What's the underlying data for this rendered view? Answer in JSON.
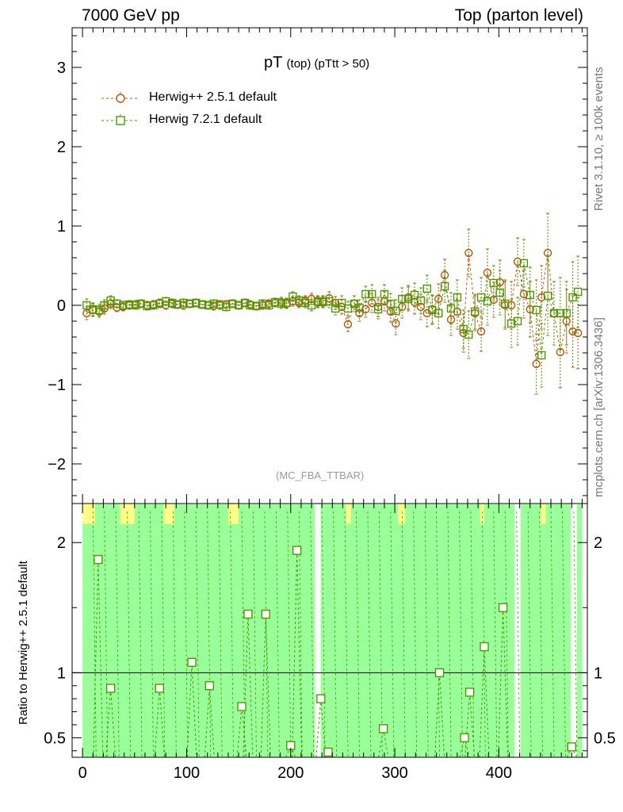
{
  "header": {
    "left": "7000 GeV pp",
    "right": "Top (parton level)"
  },
  "side_labels": {
    "rivet": "Rivet 3.1.10, ≥ 100k events",
    "site": "mcplots.cern.ch [arXiv:1306.3436]"
  },
  "colors": {
    "herwig_old": "#b35806",
    "herwig_new": "#4d9a00",
    "band_green": "#99ff99",
    "band_yellow": "#ffff88"
  },
  "chart_data": [
    {
      "type": "scatter",
      "title_main": "pT",
      "title_sub": "(top) (pTtt > 50)",
      "watermark": "(MC_FBA_TTBAR)",
      "xlim": [
        -10,
        485
      ],
      "ylim": [
        -2.5,
        3.5
      ],
      "yticks": [
        -2,
        -1,
        0,
        1,
        2,
        3
      ],
      "ytick_labels": [
        "−2",
        "−1",
        "0",
        "1",
        "2",
        "3"
      ],
      "xticks": [
        0,
        100,
        200,
        300,
        400
      ],
      "xtick_labels": [
        "0",
        "100",
        "200",
        "300",
        "400"
      ],
      "x": [
        4,
        10,
        16,
        21,
        27,
        33,
        39,
        45,
        51,
        56,
        62,
        68,
        74,
        80,
        86,
        91,
        97,
        103,
        109,
        115,
        121,
        126,
        132,
        138,
        144,
        150,
        156,
        161,
        167,
        173,
        179,
        185,
        191,
        196,
        202,
        208,
        214,
        220,
        226,
        231,
        237,
        243,
        249,
        255,
        261,
        266,
        272,
        278,
        284,
        290,
        296,
        301,
        307,
        313,
        319,
        325,
        331,
        336,
        342,
        348,
        354,
        360,
        366,
        371,
        377,
        383,
        389,
        395,
        401,
        406,
        412,
        418,
        424,
        430,
        436,
        441,
        447,
        453,
        459,
        465,
        471,
        476
      ],
      "series": [
        {
          "name": "Herwig++ 2.5.1 default",
          "marker": "circle",
          "y": [
            -0.1,
            -0.06,
            -0.08,
            -0.04,
            0.02,
            -0.03,
            -0.02,
            0.0,
            0.01,
            0.02,
            0.0,
            0.01,
            0.03,
            0.0,
            0.02,
            0.01,
            0.0,
            0.02,
            0.03,
            0.01,
            0.0,
            -0.01,
            0.0,
            0.01,
            0.02,
            0.0,
            0.03,
            0.01,
            -0.01,
            0.0,
            0.02,
            0.03,
            0.04,
            0.02,
            0.05,
            0.03,
            0.06,
            0.08,
            0.04,
            0.05,
            0.09,
            0.03,
            -0.02,
            -0.24,
            0.02,
            -0.1,
            -0.05,
            0.03,
            -0.02,
            0.05,
            -0.08,
            -0.23,
            -0.02,
            0.1,
            0.04,
            -0.02,
            -0.1,
            -0.05,
            0.08,
            0.38,
            -0.18,
            -0.08,
            -0.35,
            0.66,
            -0.1,
            -0.33,
            0.41,
            0.07,
            0.29,
            0.0,
            0.0,
            0.55,
            0.14,
            -0.05,
            -0.74,
            0.1,
            0.66,
            -0.1,
            -0.59,
            -0.2,
            -0.33,
            -0.35
          ],
          "err": [
            0.08,
            0.08,
            0.07,
            0.07,
            0.06,
            0.05,
            0.05,
            0.05,
            0.05,
            0.05,
            0.05,
            0.05,
            0.05,
            0.05,
            0.05,
            0.05,
            0.05,
            0.05,
            0.05,
            0.05,
            0.05,
            0.05,
            0.05,
            0.05,
            0.05,
            0.05,
            0.05,
            0.05,
            0.05,
            0.05,
            0.05,
            0.05,
            0.06,
            0.06,
            0.06,
            0.06,
            0.06,
            0.07,
            0.07,
            0.07,
            0.08,
            0.08,
            0.09,
            0.09,
            0.1,
            0.1,
            0.1,
            0.12,
            0.12,
            0.12,
            0.13,
            0.14,
            0.14,
            0.15,
            0.15,
            0.16,
            0.17,
            0.18,
            0.19,
            0.2,
            0.2,
            0.22,
            0.24,
            0.3,
            0.22,
            0.25,
            0.3,
            0.22,
            0.28,
            0.3,
            0.3,
            0.3,
            0.3,
            0.35,
            0.38,
            0.4,
            0.5,
            0.4,
            0.45,
            0.4,
            0.45,
            0.45
          ]
        },
        {
          "name": "Herwig 7.2.1 default",
          "marker": "square",
          "y": [
            0.0,
            -0.05,
            -0.06,
            0.0,
            0.06,
            0.02,
            0.0,
            0.01,
            0.0,
            0.02,
            -0.01,
            0.0,
            0.02,
            0.05,
            0.03,
            0.01,
            0.03,
            0.02,
            0.03,
            0.01,
            0.0,
            0.02,
            0.01,
            -0.02,
            0.02,
            0.0,
            0.03,
            0.0,
            -0.01,
            0.02,
            0.0,
            0.04,
            0.02,
            0.03,
            0.11,
            0.06,
            0.03,
            0.0,
            0.05,
            0.04,
            0.05,
            -0.04,
            0.03,
            -0.04,
            0.02,
            -0.03,
            0.14,
            0.14,
            -0.05,
            0.14,
            0.02,
            -0.07,
            0.08,
            0.08,
            0.13,
            0.06,
            0.21,
            -0.06,
            -0.1,
            0.24,
            -0.04,
            0.1,
            -0.3,
            -0.37,
            -0.08,
            0.1,
            0.05,
            0.28,
            0.16,
            0.02,
            -0.23,
            -0.2,
            0.53,
            0.13,
            -0.06,
            -0.63,
            0.12,
            -0.1,
            -0.1,
            -0.1,
            0.1,
            0.17
          ],
          "err": [
            0.08,
            0.08,
            0.07,
            0.07,
            0.06,
            0.05,
            0.05,
            0.05,
            0.05,
            0.05,
            0.05,
            0.05,
            0.05,
            0.05,
            0.05,
            0.05,
            0.05,
            0.05,
            0.05,
            0.05,
            0.05,
            0.05,
            0.05,
            0.05,
            0.05,
            0.05,
            0.05,
            0.05,
            0.05,
            0.05,
            0.05,
            0.05,
            0.06,
            0.06,
            0.06,
            0.06,
            0.06,
            0.07,
            0.07,
            0.07,
            0.08,
            0.08,
            0.09,
            0.09,
            0.1,
            0.1,
            0.1,
            0.12,
            0.12,
            0.12,
            0.13,
            0.14,
            0.14,
            0.15,
            0.15,
            0.16,
            0.17,
            0.18,
            0.19,
            0.2,
            0.2,
            0.22,
            0.24,
            0.3,
            0.22,
            0.25,
            0.3,
            0.22,
            0.28,
            0.3,
            0.3,
            0.3,
            0.3,
            0.35,
            0.38,
            0.4,
            0.5,
            0.4,
            0.45,
            0.4,
            0.45,
            0.45
          ]
        }
      ]
    },
    {
      "type": "scatter",
      "ylabel": "Ratio to Herwig++ 2.5.1 default",
      "ylim": [
        0.35,
        2.3
      ],
      "yticks": [
        0.5,
        1,
        2
      ],
      "ytick_labels": [
        "0.5",
        "1",
        "2"
      ],
      "reference_line": 1,
      "series": [
        {
          "name": "Herwig 7.2.1 default",
          "x": [
            15,
            27,
            74,
            105,
            122,
            153,
            159,
            176,
            200,
            206,
            229,
            236,
            289,
            343,
            367,
            372,
            386,
            404,
            470
          ],
          "y": [
            1.87,
            0.88,
            0.88,
            1.08,
            0.9,
            0.74,
            1.45,
            1.45,
            0.44,
            1.94,
            0.8,
            0.39,
            0.57,
            1.0,
            0.5,
            0.85,
            1.2,
            1.5,
            0.43
          ]
        }
      ],
      "band_gaps": [
        226,
        418,
        472
      ],
      "yellow_bins": [
        [
          0,
          12
        ],
        [
          36,
          45
        ],
        [
          45,
          50
        ],
        [
          78,
          88
        ],
        [
          140,
          150
        ],
        [
          253,
          258
        ],
        [
          303,
          310
        ],
        [
          382,
          386
        ],
        [
          440,
          445
        ]
      ]
    }
  ]
}
